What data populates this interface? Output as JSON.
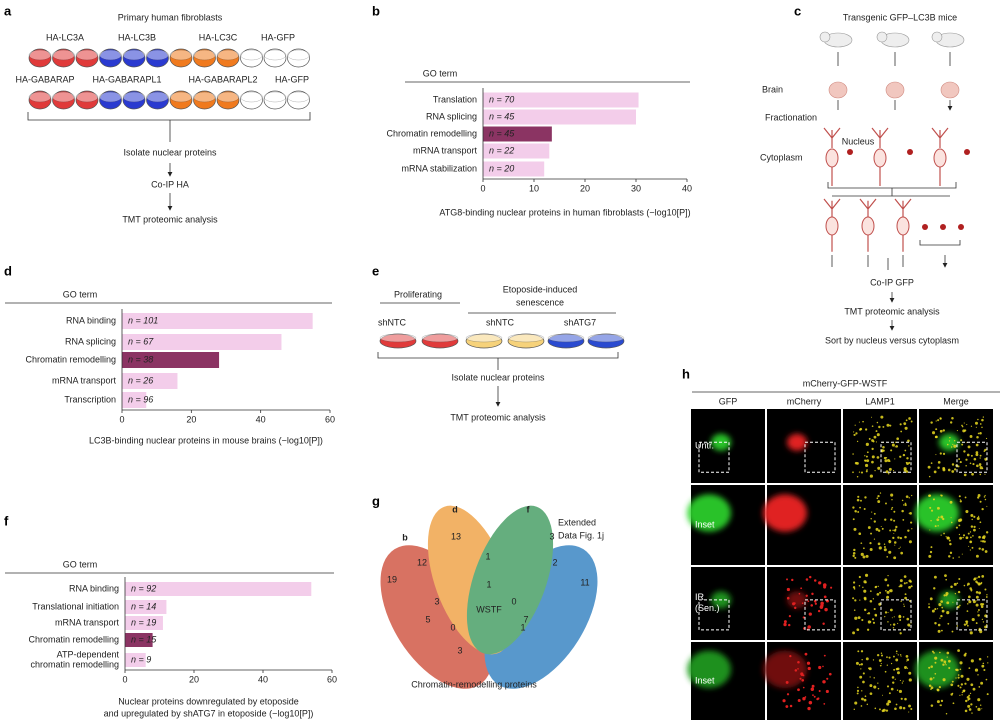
{
  "panels": {
    "a": {
      "letter": "a",
      "title": "Primary human fibroblasts",
      "row1_labels": [
        "HA-LC3A",
        "HA-LC3B",
        "HA-LC3C",
        "HA-GFP"
      ],
      "row2_labels": [
        "HA-GABARAP",
        "HA-GABARAPL1",
        "HA-GABARAPL2",
        "HA-GFP"
      ],
      "steps": [
        "Isolate nuclear proteins",
        "Co-IP HA",
        "TMT proteomic analysis"
      ]
    },
    "c": {
      "letter": "c",
      "title": "Transgenic GFP–LC3B mice",
      "brain": "Brain",
      "fractionation": "Fractionation",
      "nucleus": "Nucleus",
      "cytoplasm": "Cytoplasm",
      "steps": [
        "Co-IP GFP",
        "TMT proteomic analysis",
        "Sort by nucleus versus cytoplasm"
      ]
    },
    "e": {
      "letter": "e",
      "proliferating": "Proliferating",
      "senescence": [
        "Etoposide-induced",
        "senescence"
      ],
      "conditions": [
        "shNTC",
        "shNTC",
        "shATG7"
      ],
      "steps": [
        "Isolate nuclear proteins",
        "TMT proteomic analysis"
      ]
    },
    "g": {
      "letter": "g",
      "sets": [
        "b",
        "d",
        "f"
      ],
      "extended": [
        "Extended",
        "Data Fig. 1j"
      ],
      "counts": [
        "19",
        "13",
        "3",
        "11",
        "12",
        "1",
        "2",
        "3",
        "1",
        "0",
        "WSTF",
        "5",
        "7",
        "0",
        "1",
        "3"
      ],
      "caption": "Chromatin-remodelling proteins"
    },
    "h": {
      "letter": "h",
      "title": "mCherry-GFP-WSTF",
      "columns": [
        "GFP",
        "mCherry",
        "LAMP1",
        "Merge"
      ],
      "rows": [
        "Untr.",
        "Inset",
        [
          "IR",
          "(Sen.)"
        ],
        "Inset"
      ]
    }
  },
  "chart_data": [
    {
      "panel": "b",
      "type": "bar",
      "header": "GO term",
      "categories": [
        "Translation",
        "RNA splicing",
        "Chromatin remodelling",
        "mRNA transport",
        "mRNA stabilization"
      ],
      "values": [
        30.5,
        30,
        13.5,
        13,
        12
      ],
      "bar_labels": [
        "n = 70",
        "n = 45",
        "n = 45",
        "n = 22",
        "n = 20"
      ],
      "colors": [
        "#f3cdea",
        "#f3cdea",
        "#8b3463",
        "#f3cdea",
        "#f3cdea"
      ],
      "label_colors": [
        "#222",
        "#222",
        "#e0403a",
        "#222",
        "#222"
      ],
      "xlabel": [
        "ATG8-binding nuclear proteins in human fibroblasts (−log10[P])"
      ],
      "xlim": [
        0,
        40
      ],
      "xticks": [
        0,
        10,
        20,
        30,
        40
      ]
    },
    {
      "panel": "d",
      "type": "bar",
      "header": "GO term",
      "categories": [
        "RNA binding",
        "RNA splicing",
        "Chromatin remodelling",
        "mRNA transport",
        "Transcription"
      ],
      "values": [
        55,
        46,
        28,
        16,
        7
      ],
      "bar_labels": [
        "n = 101",
        "n = 67",
        "n = 38",
        "n = 26",
        "n = 96"
      ],
      "colors": [
        "#f3cdea",
        "#f3cdea",
        "#8b3463",
        "#f3cdea",
        "#f3cdea"
      ],
      "label_colors": [
        "#222",
        "#222",
        "#e0403a",
        "#222",
        "#222"
      ],
      "xlabel": [
        "LC3B-binding nuclear proteins in mouse brains (−log10[P])"
      ],
      "xlim": [
        0,
        60
      ],
      "xticks": [
        0,
        20,
        40,
        60
      ]
    },
    {
      "panel": "f",
      "type": "bar",
      "header": "GO term",
      "categories": [
        "RNA binding",
        "Translational initiation",
        "mRNA transport",
        "Chromatin remodelling",
        [
          "ATP-dependent",
          "chromatin remodelling"
        ]
      ],
      "values": [
        54,
        12,
        11,
        8,
        6
      ],
      "bar_labels": [
        "n = 92",
        "n = 14",
        "n = 19",
        "n = 15",
        "n = 9"
      ],
      "colors": [
        "#f3cdea",
        "#f3cdea",
        "#f3cdea",
        "#8b3463",
        "#f3cdea"
      ],
      "label_colors": [
        "#222",
        "#222",
        "#222",
        "#e0403a",
        "#e0403a"
      ],
      "xlabel": [
        "Nuclear proteins downregulated by etoposide",
        "and upregulated by shATG7 in etoposide (−log10[P])"
      ],
      "xlim": [
        0,
        60
      ],
      "xticks": [
        0,
        20,
        40,
        60
      ]
    }
  ]
}
